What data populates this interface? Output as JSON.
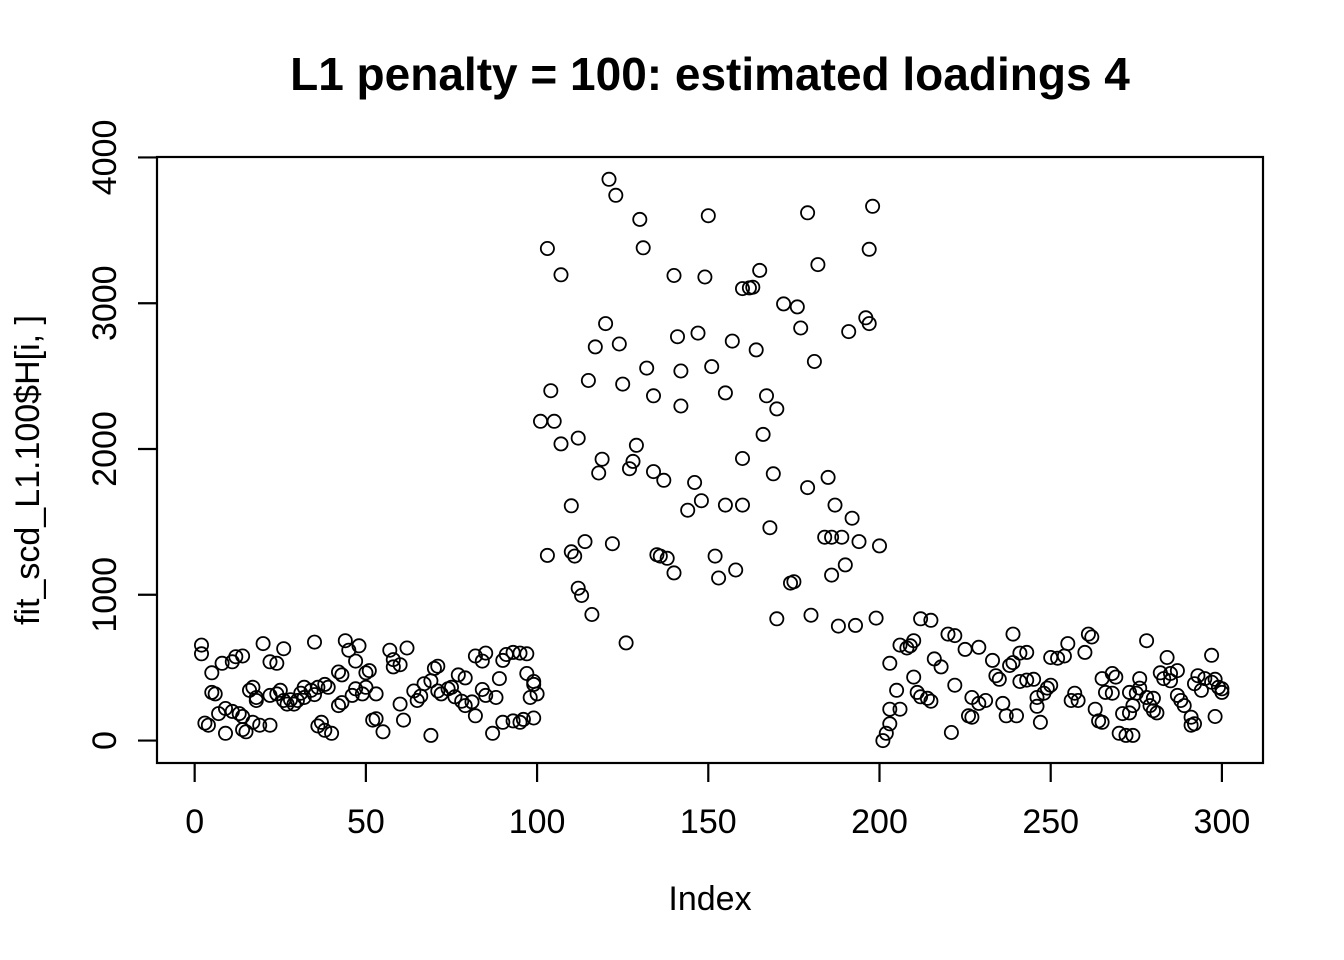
{
  "colors": {
    "foreground": "#000000",
    "background": "#FFFFFF"
  },
  "chart_data": {
    "type": "scatter",
    "title": "L1 penalty = 100: estimated loadings 4",
    "xlabel": "Index",
    "ylabel": "fit_scd_L1.100$H[i, ]",
    "marker": "open-circle",
    "grid": false,
    "legend": null,
    "x_ticks": [
      0,
      50,
      100,
      150,
      200,
      250,
      300
    ],
    "y_ticks": [
      0,
      1000,
      2000,
      3000,
      4000
    ],
    "xlim": [
      -11,
      312
    ],
    "ylim": [
      -154,
      4003
    ],
    "points": [
      [
        2,
        655
      ],
      [
        2,
        595
      ],
      [
        3,
        120
      ],
      [
        4,
        105
      ],
      [
        5,
        465
      ],
      [
        5,
        330
      ],
      [
        6,
        320
      ],
      [
        7,
        185
      ],
      [
        8,
        530
      ],
      [
        9,
        220
      ],
      [
        9,
        50
      ],
      [
        11,
        540
      ],
      [
        11,
        200
      ],
      [
        12,
        575
      ],
      [
        13,
        185
      ],
      [
        14,
        580
      ],
      [
        14,
        165
      ],
      [
        14,
        75
      ],
      [
        15,
        60
      ],
      [
        16,
        345
      ],
      [
        17,
        365
      ],
      [
        17,
        125
      ],
      [
        18,
        295
      ],
      [
        18,
        275
      ],
      [
        19,
        105
      ],
      [
        20,
        665
      ],
      [
        22,
        540
      ],
      [
        22,
        310
      ],
      [
        22,
        105
      ],
      [
        24,
        530
      ],
      [
        24,
        320
      ],
      [
        25,
        345
      ],
      [
        26,
        630
      ],
      [
        26,
        275
      ],
      [
        27,
        250
      ],
      [
        28,
        280
      ],
      [
        29,
        250
      ],
      [
        30,
        275
      ],
      [
        31,
        325
      ],
      [
        32,
        365
      ],
      [
        32,
        295
      ],
      [
        34,
        345
      ],
      [
        35,
        675
      ],
      [
        35,
        315
      ],
      [
        36,
        365
      ],
      [
        36,
        100
      ],
      [
        37,
        125
      ],
      [
        38,
        385
      ],
      [
        38,
        70
      ],
      [
        39,
        365
      ],
      [
        40,
        50
      ],
      [
        42,
        470
      ],
      [
        42,
        240
      ],
      [
        43,
        450
      ],
      [
        43,
        260
      ],
      [
        44,
        685
      ],
      [
        45,
        620
      ],
      [
        46,
        310
      ],
      [
        47,
        545
      ],
      [
        47,
        355
      ],
      [
        48,
        650
      ],
      [
        49,
        320
      ],
      [
        50,
        465
      ],
      [
        50,
        365
      ],
      [
        51,
        480
      ],
      [
        52,
        140
      ],
      [
        53,
        320
      ],
      [
        53,
        150
      ],
      [
        55,
        60
      ],
      [
        57,
        620
      ],
      [
        58,
        555
      ],
      [
        58,
        505
      ],
      [
        60,
        520
      ],
      [
        60,
        250
      ],
      [
        61,
        140
      ],
      [
        62,
        635
      ],
      [
        64,
        340
      ],
      [
        65,
        275
      ],
      [
        66,
        305
      ],
      [
        67,
        390
      ],
      [
        69,
        410
      ],
      [
        69,
        35
      ],
      [
        70,
        495
      ],
      [
        71,
        510
      ],
      [
        71,
        340
      ],
      [
        72,
        320
      ],
      [
        74,
        355
      ],
      [
        75,
        365
      ],
      [
        76,
        300
      ],
      [
        77,
        450
      ],
      [
        78,
        270
      ],
      [
        79,
        430
      ],
      [
        79,
        240
      ],
      [
        81,
        265
      ],
      [
        82,
        580
      ],
      [
        82,
        170
      ],
      [
        84,
        545
      ],
      [
        84,
        350
      ],
      [
        85,
        600
      ],
      [
        85,
        310
      ],
      [
        87,
        50
      ],
      [
        88,
        295
      ],
      [
        89,
        425
      ],
      [
        90,
        550
      ],
      [
        90,
        125
      ],
      [
        91,
        590
      ],
      [
        93,
        605
      ],
      [
        93,
        135
      ],
      [
        95,
        600
      ],
      [
        95,
        125
      ],
      [
        96,
        145
      ],
      [
        97,
        595
      ],
      [
        97,
        460
      ],
      [
        98,
        295
      ],
      [
        99,
        405
      ],
      [
        99,
        385
      ],
      [
        99,
        155
      ],
      [
        100,
        320
      ],
      [
        101,
        2190
      ],
      [
        103,
        3375
      ],
      [
        103,
        1270
      ],
      [
        104,
        2400
      ],
      [
        105,
        2190
      ],
      [
        107,
        3195
      ],
      [
        107,
        2035
      ],
      [
        110,
        1610
      ],
      [
        110,
        1295
      ],
      [
        111,
        1265
      ],
      [
        112,
        2075
      ],
      [
        112,
        1045
      ],
      [
        113,
        995
      ],
      [
        114,
        1365
      ],
      [
        115,
        2470
      ],
      [
        116,
        865
      ],
      [
        117,
        2700
      ],
      [
        118,
        1835
      ],
      [
        119,
        1930
      ],
      [
        120,
        2860
      ],
      [
        121,
        3850
      ],
      [
        122,
        1350
      ],
      [
        123,
        3740
      ],
      [
        124,
        2720
      ],
      [
        125,
        2445
      ],
      [
        126,
        670
      ],
      [
        127,
        1865
      ],
      [
        128,
        1915
      ],
      [
        129,
        2025
      ],
      [
        130,
        3575
      ],
      [
        131,
        3380
      ],
      [
        132,
        2555
      ],
      [
        134,
        2365
      ],
      [
        134,
        1845
      ],
      [
        135,
        1275
      ],
      [
        136,
        1265
      ],
      [
        137,
        1785
      ],
      [
        138,
        1250
      ],
      [
        140,
        3190
      ],
      [
        140,
        1150
      ],
      [
        141,
        2770
      ],
      [
        142,
        2535
      ],
      [
        142,
        2295
      ],
      [
        144,
        1580
      ],
      [
        146,
        1770
      ],
      [
        147,
        2795
      ],
      [
        148,
        1645
      ],
      [
        149,
        3180
      ],
      [
        150,
        3600
      ],
      [
        151,
        2565
      ],
      [
        152,
        1265
      ],
      [
        153,
        1115
      ],
      [
        155,
        2385
      ],
      [
        155,
        1615
      ],
      [
        157,
        2740
      ],
      [
        158,
        1170
      ],
      [
        160,
        3100
      ],
      [
        160,
        1935
      ],
      [
        160,
        1615
      ],
      [
        162,
        3105
      ],
      [
        163,
        3110
      ],
      [
        164,
        2680
      ],
      [
        165,
        3225
      ],
      [
        166,
        2100
      ],
      [
        167,
        2365
      ],
      [
        168,
        1460
      ],
      [
        169,
        1830
      ],
      [
        170,
        2275
      ],
      [
        170,
        835
      ],
      [
        172,
        2995
      ],
      [
        174,
        1080
      ],
      [
        175,
        1090
      ],
      [
        176,
        2975
      ],
      [
        177,
        2830
      ],
      [
        179,
        3620
      ],
      [
        179,
        1735
      ],
      [
        180,
        860
      ],
      [
        181,
        2600
      ],
      [
        182,
        3265
      ],
      [
        184,
        1395
      ],
      [
        185,
        1805
      ],
      [
        186,
        1395
      ],
      [
        186,
        1135
      ],
      [
        187,
        1615
      ],
      [
        188,
        785
      ],
      [
        189,
        1395
      ],
      [
        190,
        1205
      ],
      [
        191,
        2805
      ],
      [
        192,
        1525
      ],
      [
        193,
        790
      ],
      [
        194,
        1365
      ],
      [
        196,
        2900
      ],
      [
        197,
        3370
      ],
      [
        197,
        2860
      ],
      [
        198,
        3665
      ],
      [
        199,
        840
      ],
      [
        200,
        1335
      ],
      [
        201,
        0
      ],
      [
        202,
        50
      ],
      [
        203,
        530
      ],
      [
        203,
        215
      ],
      [
        203,
        115
      ],
      [
        205,
        345
      ],
      [
        206,
        655
      ],
      [
        206,
        215
      ],
      [
        208,
        635
      ],
      [
        209,
        650
      ],
      [
        210,
        685
      ],
      [
        210,
        435
      ],
      [
        211,
        330
      ],
      [
        212,
        835
      ],
      [
        212,
        300
      ],
      [
        214,
        290
      ],
      [
        215,
        825
      ],
      [
        215,
        270
      ],
      [
        216,
        560
      ],
      [
        218,
        505
      ],
      [
        220,
        730
      ],
      [
        221,
        55
      ],
      [
        222,
        720
      ],
      [
        222,
        380
      ],
      [
        225,
        625
      ],
      [
        226,
        170
      ],
      [
        227,
        295
      ],
      [
        227,
        160
      ],
      [
        229,
        640
      ],
      [
        229,
        255
      ],
      [
        231,
        275
      ],
      [
        233,
        550
      ],
      [
        234,
        445
      ],
      [
        235,
        420
      ],
      [
        236,
        255
      ],
      [
        237,
        170
      ],
      [
        238,
        515
      ],
      [
        239,
        730
      ],
      [
        239,
        535
      ],
      [
        240,
        170
      ],
      [
        241,
        600
      ],
      [
        241,
        405
      ],
      [
        243,
        605
      ],
      [
        243,
        415
      ],
      [
        245,
        420
      ],
      [
        246,
        295
      ],
      [
        246,
        235
      ],
      [
        247,
        125
      ],
      [
        248,
        325
      ],
      [
        249,
        360
      ],
      [
        250,
        570
      ],
      [
        250,
        380
      ],
      [
        252,
        565
      ],
      [
        254,
        580
      ],
      [
        255,
        665
      ],
      [
        256,
        275
      ],
      [
        257,
        325
      ],
      [
        258,
        275
      ],
      [
        260,
        605
      ],
      [
        261,
        730
      ],
      [
        262,
        710
      ],
      [
        263,
        215
      ],
      [
        264,
        135
      ],
      [
        265,
        425
      ],
      [
        265,
        125
      ],
      [
        266,
        330
      ],
      [
        268,
        460
      ],
      [
        268,
        325
      ],
      [
        269,
        435
      ],
      [
        270,
        50
      ],
      [
        271,
        185
      ],
      [
        272,
        35
      ],
      [
        273,
        330
      ],
      [
        273,
        190
      ],
      [
        274,
        240
      ],
      [
        274,
        35
      ],
      [
        275,
        325
      ],
      [
        276,
        425
      ],
      [
        276,
        360
      ],
      [
        278,
        685
      ],
      [
        278,
        295
      ],
      [
        279,
        240
      ],
      [
        280,
        290
      ],
      [
        280,
        205
      ],
      [
        281,
        190
      ],
      [
        282,
        465
      ],
      [
        283,
        425
      ],
      [
        284,
        570
      ],
      [
        285,
        460
      ],
      [
        285,
        410
      ],
      [
        287,
        480
      ],
      [
        287,
        310
      ],
      [
        288,
        275
      ],
      [
        289,
        240
      ],
      [
        291,
        160
      ],
      [
        291,
        105
      ],
      [
        292,
        390
      ],
      [
        292,
        115
      ],
      [
        293,
        445
      ],
      [
        294,
        345
      ],
      [
        295,
        425
      ],
      [
        297,
        585
      ],
      [
        297,
        400
      ],
      [
        298,
        420
      ],
      [
        298,
        165
      ],
      [
        299,
        365
      ],
      [
        300,
        355
      ],
      [
        300,
        330
      ]
    ]
  }
}
